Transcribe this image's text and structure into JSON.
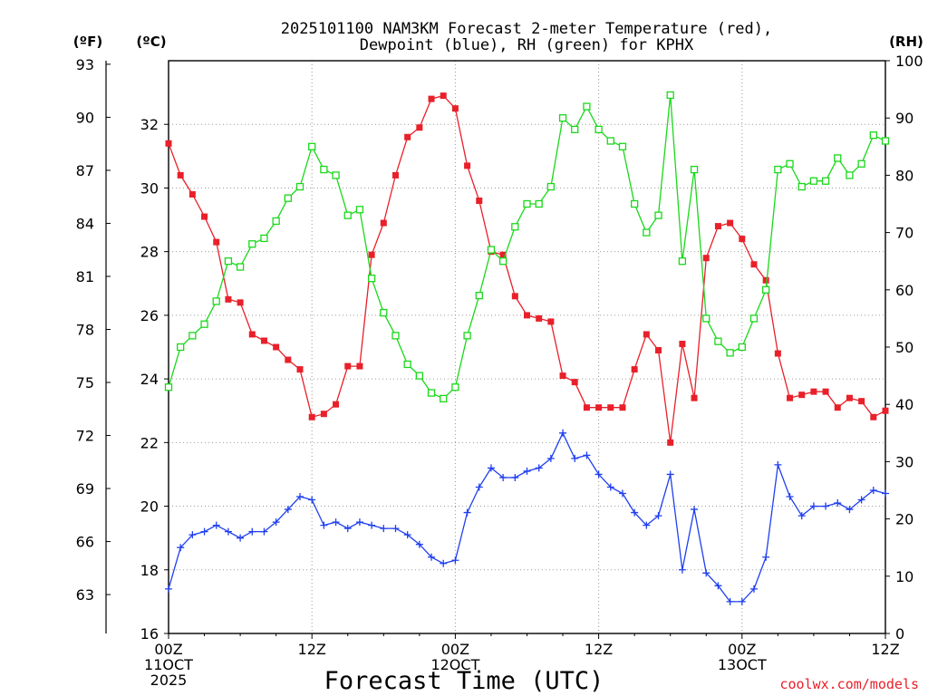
{
  "chart_data": {
    "type": "line",
    "title_lines": [
      "2025101100 NAM3KM Forecast 2-meter Temperature (red),",
      "Dewpoint (blue), RH (green) for KPHX"
    ],
    "xlabel": "Forecast Time (UTC)",
    "credit": "coolwx.com/models",
    "units": {
      "fahrenheit": "(ºF)",
      "celsius": "(ºC)",
      "rh": "(RH)"
    },
    "x_range_hours": [
      0,
      60
    ],
    "celsius_axis": {
      "range": [
        16,
        34
      ],
      "ticks": [
        "16",
        "18",
        "20",
        "22",
        "24",
        "26",
        "28",
        "30",
        "32"
      ]
    },
    "fahrenheit_axis": {
      "ticks": [
        "63",
        "66",
        "69",
        "72",
        "75",
        "78",
        "81",
        "84",
        "87",
        "90",
        "93"
      ]
    },
    "rh_axis": {
      "range": [
        0,
        100
      ],
      "ticks": [
        "0",
        "10",
        "20",
        "30",
        "40",
        "50",
        "60",
        "70",
        "80",
        "90",
        "100"
      ]
    },
    "x_ticks": [
      {
        "hour": 0,
        "lines": [
          "00Z",
          "11OCT",
          "2025"
        ]
      },
      {
        "hour": 12,
        "lines": [
          "12Z"
        ]
      },
      {
        "hour": 24,
        "lines": [
          "00Z",
          "12OCT"
        ]
      },
      {
        "hour": 36,
        "lines": [
          "12Z"
        ]
      },
      {
        "hour": 48,
        "lines": [
          "00Z",
          "13OCT"
        ]
      },
      {
        "hour": 60,
        "lines": [
          "12Z"
        ]
      }
    ],
    "series": [
      {
        "name": "Temperature (red)",
        "axis": "celsius",
        "color": "#e8202a",
        "marker": "filled-square",
        "values": [
          31.4,
          30.4,
          29.8,
          29.1,
          28.3,
          26.5,
          26.4,
          25.4,
          25.2,
          25.0,
          24.6,
          24.3,
          22.8,
          22.9,
          23.2,
          24.4,
          24.4,
          27.9,
          28.9,
          30.4,
          31.6,
          31.9,
          32.8,
          32.9,
          32.5,
          30.7,
          29.6,
          28.0,
          27.9,
          26.6,
          26.0,
          25.9,
          25.8,
          24.1,
          23.9,
          23.1,
          23.1,
          23.1,
          23.1,
          24.3,
          25.4,
          24.9,
          22.0,
          25.1,
          23.4,
          27.8,
          28.8,
          28.9,
          28.4,
          27.6,
          27.1,
          24.8,
          23.4,
          23.5,
          23.6,
          23.6,
          23.1,
          23.4,
          23.3,
          22.8,
          23.0
        ]
      },
      {
        "name": "Dewpoint (blue)",
        "axis": "celsius",
        "color": "#1f3ff0",
        "marker": "plus",
        "values": [
          17.4,
          18.7,
          19.1,
          19.2,
          19.4,
          19.2,
          19.0,
          19.2,
          19.2,
          19.5,
          19.9,
          20.3,
          20.2,
          19.4,
          19.5,
          19.3,
          19.5,
          19.4,
          19.3,
          19.3,
          19.1,
          18.8,
          18.4,
          18.2,
          18.3,
          19.8,
          20.6,
          21.2,
          20.9,
          20.9,
          21.1,
          21.2,
          21.5,
          22.3,
          21.5,
          21.6,
          21.0,
          20.6,
          20.4,
          19.8,
          19.4,
          19.7,
          21.0,
          18.0,
          19.9,
          17.9,
          17.5,
          17.0,
          17.0,
          17.4,
          18.4,
          21.3,
          20.3,
          19.7,
          20.0,
          20.0,
          20.1,
          19.9,
          20.2,
          20.5,
          20.4
        ]
      },
      {
        "name": "RH (green)",
        "axis": "rh",
        "color": "#1ad81a",
        "marker": "open-square",
        "values": [
          43,
          50,
          52,
          54,
          58,
          65,
          64,
          68,
          69,
          72,
          76,
          78,
          85,
          81,
          80,
          73,
          74,
          62,
          56,
          52,
          47,
          45,
          42,
          41,
          43,
          52,
          59,
          67,
          65,
          71,
          75,
          75,
          78,
          90,
          88,
          92,
          88,
          86,
          85,
          75,
          70,
          73,
          94,
          65,
          81,
          55,
          51,
          49,
          50,
          55,
          60,
          81,
          82,
          78,
          79,
          79,
          83,
          80,
          82,
          87,
          86
        ]
      }
    ]
  }
}
